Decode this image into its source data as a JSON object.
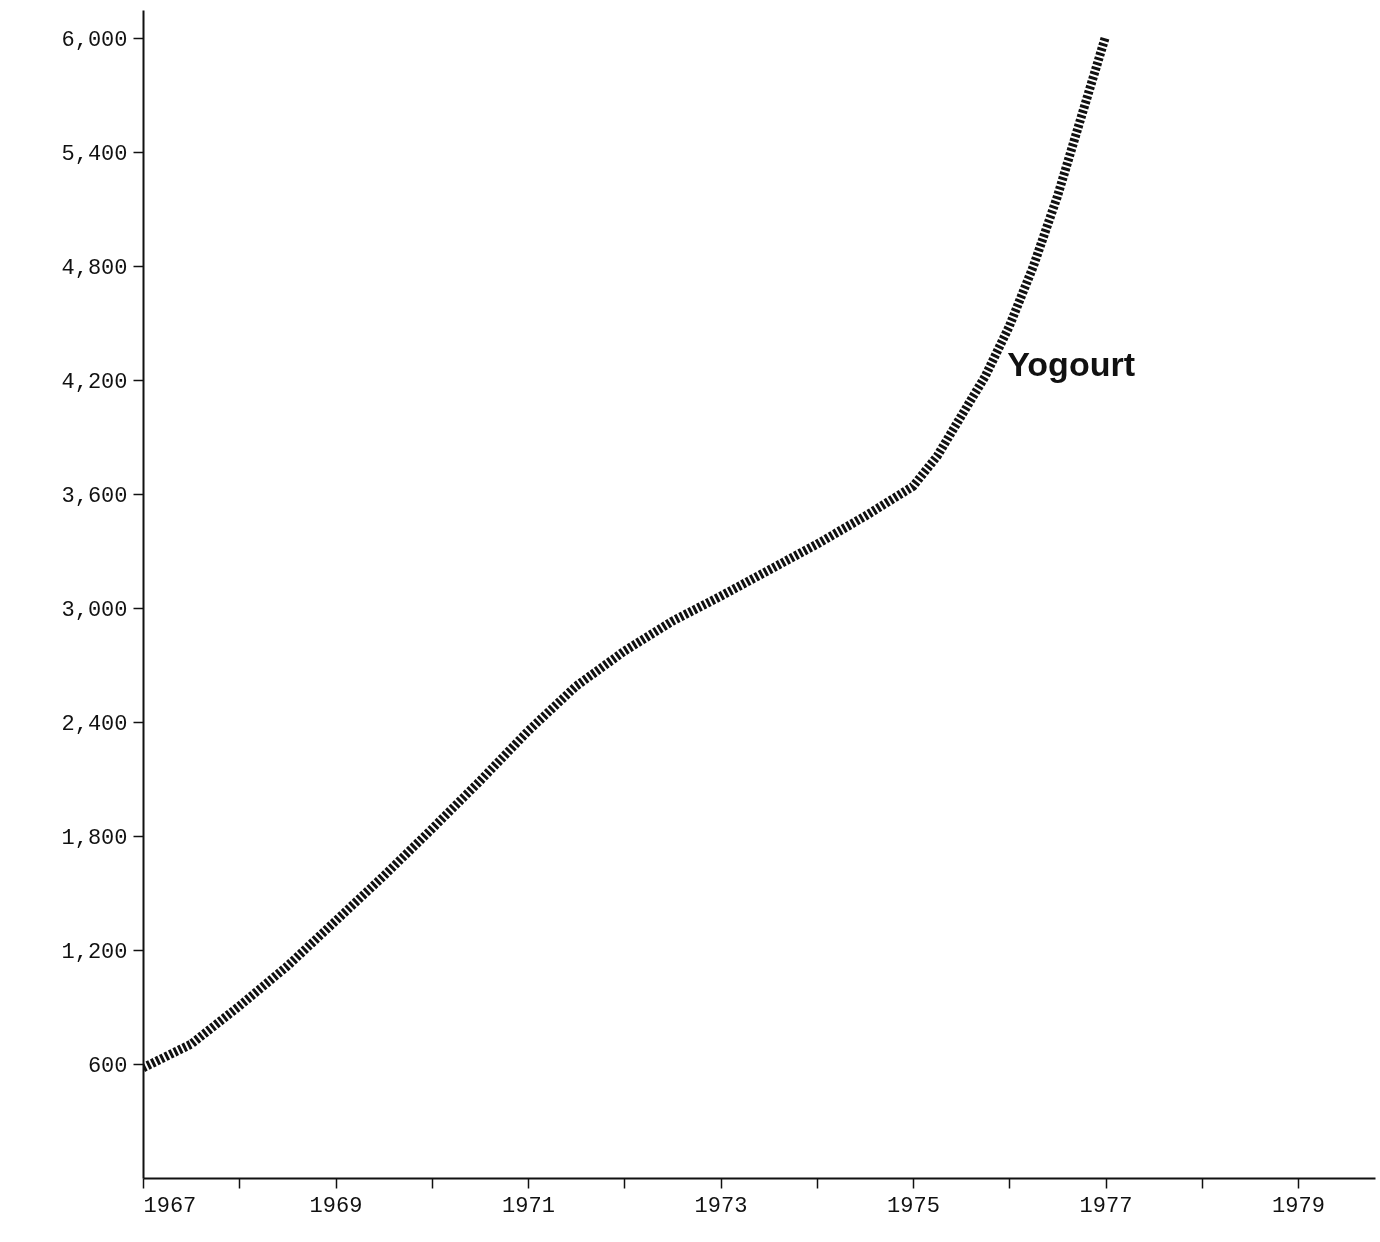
{
  "chart_data": {
    "type": "line",
    "x": [
      1967,
      1967.5,
      1968,
      1968.5,
      1969,
      1969.5,
      1970,
      1970.5,
      1971,
      1971.5,
      1972,
      1972.5,
      1973,
      1973.5,
      1974,
      1974.5,
      1975,
      1975.25,
      1975.5,
      1975.75,
      1976,
      1976.25,
      1976.5,
      1976.75,
      1977
    ],
    "series": [
      {
        "name": "Yogourt",
        "color": "#111111",
        "values": [
          580,
          705,
          905,
          1116,
          1353,
          1590,
          1837,
          2090,
          2353,
          2590,
          2774,
          2932,
          3063,
          3200,
          3337,
          3484,
          3642,
          3800,
          4011,
          4221,
          4484,
          4800,
          5168,
          5590,
          6010
        ]
      }
    ],
    "xlim": [
      1967,
      1979.8
    ],
    "xticks": [
      1967,
      {
        "value": 1968,
        "label": null
      },
      1969,
      {
        "value": 1970,
        "label": null
      },
      1971,
      {
        "value": 1972,
        "label": null
      },
      1973,
      {
        "value": 1974,
        "label": null
      },
      1975,
      {
        "value": 1976,
        "label": null
      },
      1977,
      {
        "value": 1978,
        "label": null
      },
      1979
    ],
    "ylim": [
      0,
      6150
    ],
    "yticks": [
      {
        "value": 600,
        "label": "600"
      },
      {
        "value": 1200,
        "label": "1,200"
      },
      {
        "value": 1800,
        "label": "1,800"
      },
      {
        "value": 2400,
        "label": "2,400"
      },
      {
        "value": 3000,
        "label": "3,000"
      },
      {
        "value": 3600,
        "label": "3,600"
      },
      {
        "value": 4200,
        "label": "4,200"
      },
      {
        "value": 4800,
        "label": "4,800"
      },
      {
        "value": 5400,
        "label": "5,400"
      },
      {
        "value": 6000,
        "label": "6,000"
      }
    ],
    "grid": false,
    "line_style": "dotted"
  }
}
